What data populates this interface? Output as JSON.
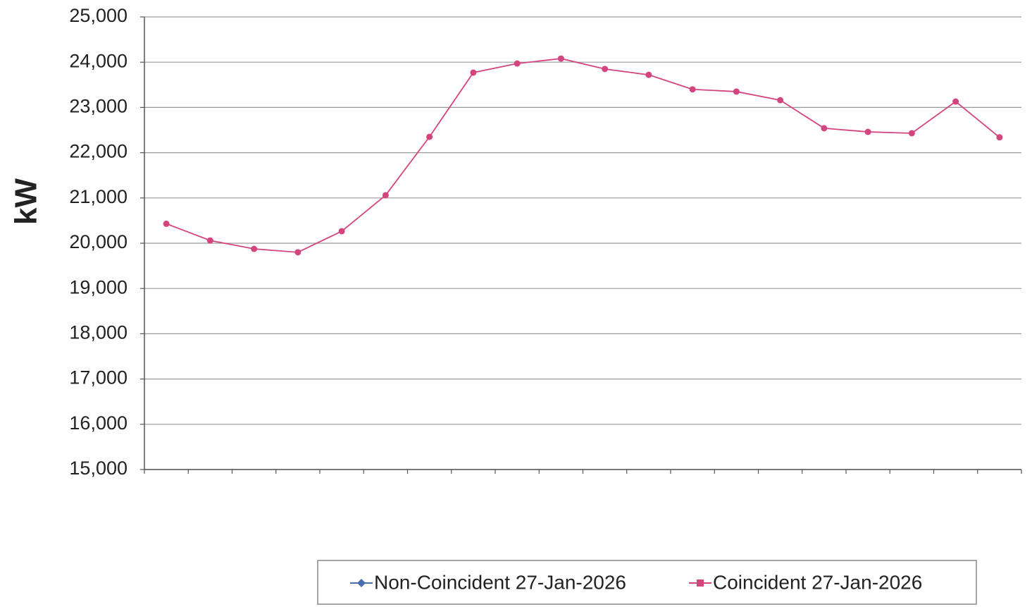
{
  "chart_data": {
    "type": "line",
    "y_label": "kW",
    "categories": [
      null,
      null,
      null,
      null,
      null,
      null,
      null,
      null,
      null,
      null,
      null,
      null,
      null,
      null,
      null,
      null,
      null,
      null,
      null,
      null
    ],
    "series": [
      {
        "name": "Non-Coincident 27-Jan-2026",
        "color": "#4a6fb0",
        "values": [
          null,
          null,
          null,
          null,
          null,
          null,
          null,
          null,
          null,
          null,
          null,
          null,
          null,
          null,
          null,
          null,
          null,
          null,
          null,
          null
        ]
      },
      {
        "name": "Coincident 27-Jan-2026",
        "color": "#d4457f",
        "values": [
          20430,
          20060,
          19875,
          19800,
          20265,
          21060,
          22350,
          23770,
          23970,
          24080,
          23850,
          23720,
          23400,
          23350,
          23160,
          22540,
          22460,
          22430,
          23130,
          22340
        ]
      }
    ],
    "ylim": [
      15000,
      25000
    ],
    "yticks": [
      {
        "value": 15000,
        "label": "15,000"
      },
      {
        "value": 16000,
        "label": "16,000"
      },
      {
        "value": 17000,
        "label": "17,000"
      },
      {
        "value": 18000,
        "label": "18,000"
      },
      {
        "value": 19000,
        "label": "19,000"
      },
      {
        "value": 20000,
        "label": "20,000"
      },
      {
        "value": 21000,
        "label": "21,000"
      },
      {
        "value": 22000,
        "label": "22,000"
      },
      {
        "value": 23000,
        "label": "23,000"
      },
      {
        "value": 24000,
        "label": "24,000"
      },
      {
        "value": 25000,
        "label": "25,000"
      }
    ],
    "grid": true
  }
}
